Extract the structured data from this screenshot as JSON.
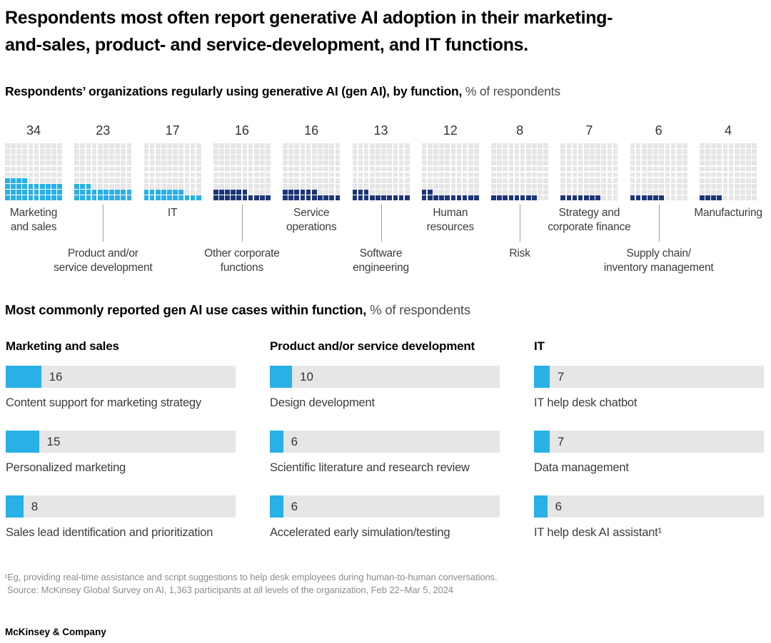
{
  "header": {
    "title_lines": [
      "Respondents most often report generative AI adoption in their marketing-",
      "and-sales, product- and service-development, and IT functions."
    ]
  },
  "waffle_section": {
    "heading_bold": "Respondents’ organizations regularly using generative AI (gen AI), by function,",
    "heading_rest": " % of respondents"
  },
  "usecase_section": {
    "heading_bold": "Most commonly reported gen AI use cases within function,",
    "heading_rest": " % of respondents"
  },
  "chart_data": [
    {
      "type": "waffle",
      "title": "Respondents’ organizations regularly using generative AI (gen AI), by function, % of respondents",
      "grid": {
        "rows": 10,
        "cols": 10,
        "square_value_pct": 1
      },
      "categories": [
        "Marketing and sales",
        "Product and/or service development",
        "IT",
        "Other corporate functions",
        "Service operations",
        "Software engineering",
        "Human resources",
        "Risk",
        "Strategy and corporate finance",
        "Supply chain/inventory management",
        "Manufacturing"
      ],
      "values": [
        34,
        23,
        17,
        16,
        16,
        13,
        12,
        8,
        7,
        6,
        4
      ],
      "display_labels": [
        "Marketing\nand sales",
        "Product and/or\nservice development",
        "IT",
        "Other corporate\nfunctions",
        "Service\noperations",
        "Software\nengineering",
        "Human\nresources",
        "Risk",
        "Strategy and\ncorporate finance",
        "Supply chain/\ninventory management",
        "Manufacturing"
      ],
      "label_row": [
        "top",
        "bottom",
        "top",
        "bottom",
        "top",
        "bottom",
        "top",
        "bottom",
        "top",
        "bottom",
        "top"
      ],
      "highlighted": [
        true,
        true,
        true,
        false,
        false,
        false,
        false,
        false,
        false,
        false,
        false
      ]
    },
    {
      "type": "bar",
      "title": "Marketing and sales",
      "categories": [
        "Content support for marketing strategy",
        "Personalized marketing",
        "Sales lead identification and prioritization"
      ],
      "values": [
        16,
        15,
        8
      ],
      "xlim": [
        0,
        104
      ],
      "ylabel": "",
      "xlabel": "% of respondents"
    },
    {
      "type": "bar",
      "title": "Product and/or service development",
      "categories": [
        "Design development",
        "Scientific literature and research review",
        "Accelerated early simulation/testing"
      ],
      "values": [
        10,
        6,
        6
      ],
      "xlim": [
        0,
        104
      ],
      "ylabel": "",
      "xlabel": "% of respondents"
    },
    {
      "type": "bar",
      "title": "IT",
      "categories": [
        "IT help desk chatbot",
        "Data management",
        "IT help desk AI assistant¹"
      ],
      "values": [
        7,
        7,
        6
      ],
      "xlim": [
        0,
        104
      ],
      "ylabel": "",
      "xlabel": "% of respondents"
    }
  ],
  "footer": {
    "footnote": "¹Eg, providing real-time assistance and script suggestions to help desk employees during human-to-human conversations.",
    "source": "Source: McKinsey Global Survey on AI, 1,363 participants at all levels of the organization, Feb 22–Mar 5, 2024",
    "brand": "McKinsey & Company"
  },
  "colors": {
    "highlight_blue": "#29B0E6",
    "navy_blue": "#1C3576",
    "grid_gray": "#E6E6E6",
    "leader_line_gray": "#9E9E9E"
  }
}
